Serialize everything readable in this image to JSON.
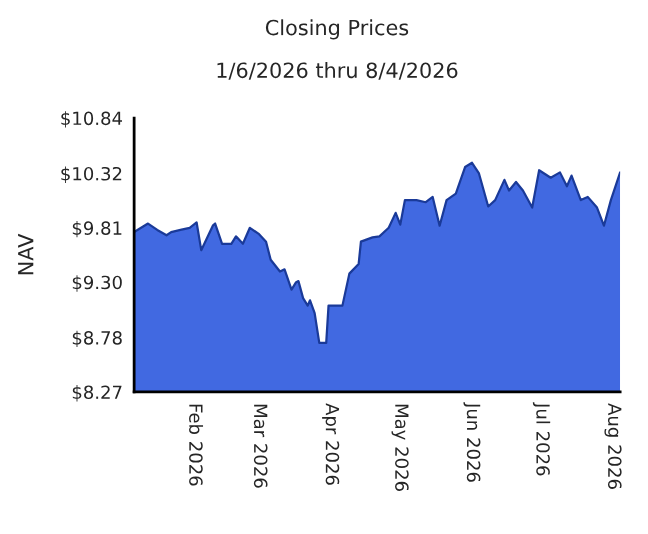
{
  "chart_data": {
    "type": "area",
    "title": "Closing Prices",
    "subtitle": "1/6/2026 thru 8/4/2026",
    "ylabel": "NAV",
    "x": [
      "2026-01-06",
      "2026-01-12",
      "2026-01-16",
      "2026-01-20",
      "2026-01-22",
      "2026-01-26",
      "2026-01-30",
      "2026-02-02",
      "2026-02-04",
      "2026-02-09",
      "2026-02-10",
      "2026-02-13",
      "2026-02-17",
      "2026-02-19",
      "2026-02-22",
      "2026-02-25",
      "2026-03-01",
      "2026-03-04",
      "2026-03-06",
      "2026-03-10",
      "2026-03-12",
      "2026-03-15",
      "2026-03-17",
      "2026-03-18",
      "2026-03-20",
      "2026-03-22",
      "2026-03-23",
      "2026-03-25",
      "2026-03-27",
      "2026-03-30",
      "2026-03-31",
      "2026-04-02",
      "2026-04-06",
      "2026-04-09",
      "2026-04-13",
      "2026-04-14",
      "2026-04-19",
      "2026-04-22",
      "2026-04-26",
      "2026-04-29",
      "2026-05-01",
      "2026-05-03",
      "2026-05-08",
      "2026-05-12",
      "2026-05-15",
      "2026-05-18",
      "2026-05-21",
      "2026-05-25",
      "2026-05-29",
      "2026-06-01",
      "2026-06-04",
      "2026-06-08",
      "2026-06-11",
      "2026-06-15",
      "2026-06-17",
      "2026-06-20",
      "2026-06-23",
      "2026-06-27",
      "2026-06-30",
      "2026-07-05",
      "2026-07-09",
      "2026-07-12",
      "2026-07-14",
      "2026-07-18",
      "2026-07-21",
      "2026-07-25",
      "2026-07-28",
      "2026-07-31",
      "2026-08-04"
    ],
    "series": [
      {
        "color": "#4169e1",
        "values": [
          9.77,
          9.85,
          9.79,
          9.74,
          9.77,
          9.79,
          9.81,
          9.86,
          9.6,
          9.83,
          9.85,
          9.66,
          9.66,
          9.73,
          9.66,
          9.81,
          9.75,
          9.68,
          9.51,
          9.4,
          9.42,
          9.23,
          9.3,
          9.31,
          9.15,
          9.08,
          9.13,
          9.01,
          8.73,
          8.73,
          9.08,
          9.08,
          9.08,
          9.38,
          9.47,
          9.68,
          9.72,
          9.73,
          9.81,
          9.95,
          9.84,
          10.07,
          10.07,
          10.05,
          10.1,
          9.83,
          10.07,
          10.13,
          10.38,
          10.42,
          10.32,
          10.01,
          10.07,
          10.26,
          10.16,
          10.24,
          10.16,
          10.0,
          10.35,
          10.28,
          10.33,
          10.2,
          10.3,
          10.07,
          10.1,
          10.0,
          9.83,
          10.07,
          10.33
        ]
      }
    ],
    "xlim": [
      "2026-01-06",
      "2026-08-04"
    ],
    "xticks": [
      {
        "value": "2026-02-01",
        "label": "Feb 2026"
      },
      {
        "value": "2026-03-01",
        "label": "Mar 2026"
      },
      {
        "value": "2026-04-01",
        "label": "Apr 2026"
      },
      {
        "value": "2026-05-01",
        "label": "May 2026"
      },
      {
        "value": "2026-06-01",
        "label": "Jun 2026"
      },
      {
        "value": "2026-07-01",
        "label": "Jul 2026"
      },
      {
        "value": "2026-08-01",
        "label": "Aug 2026"
      }
    ],
    "ylim": [
      8.27,
      10.84
    ],
    "yticks": [
      {
        "value": 8.27,
        "label": "$8.27"
      },
      {
        "value": 8.78,
        "label": "$8.78"
      },
      {
        "value": 9.3,
        "label": "$9.30"
      },
      {
        "value": 9.81,
        "label": "$9.81"
      },
      {
        "value": 10.32,
        "label": "$10.32"
      },
      {
        "value": 10.84,
        "label": "$10.84"
      }
    ],
    "grid": false,
    "legend": false
  }
}
